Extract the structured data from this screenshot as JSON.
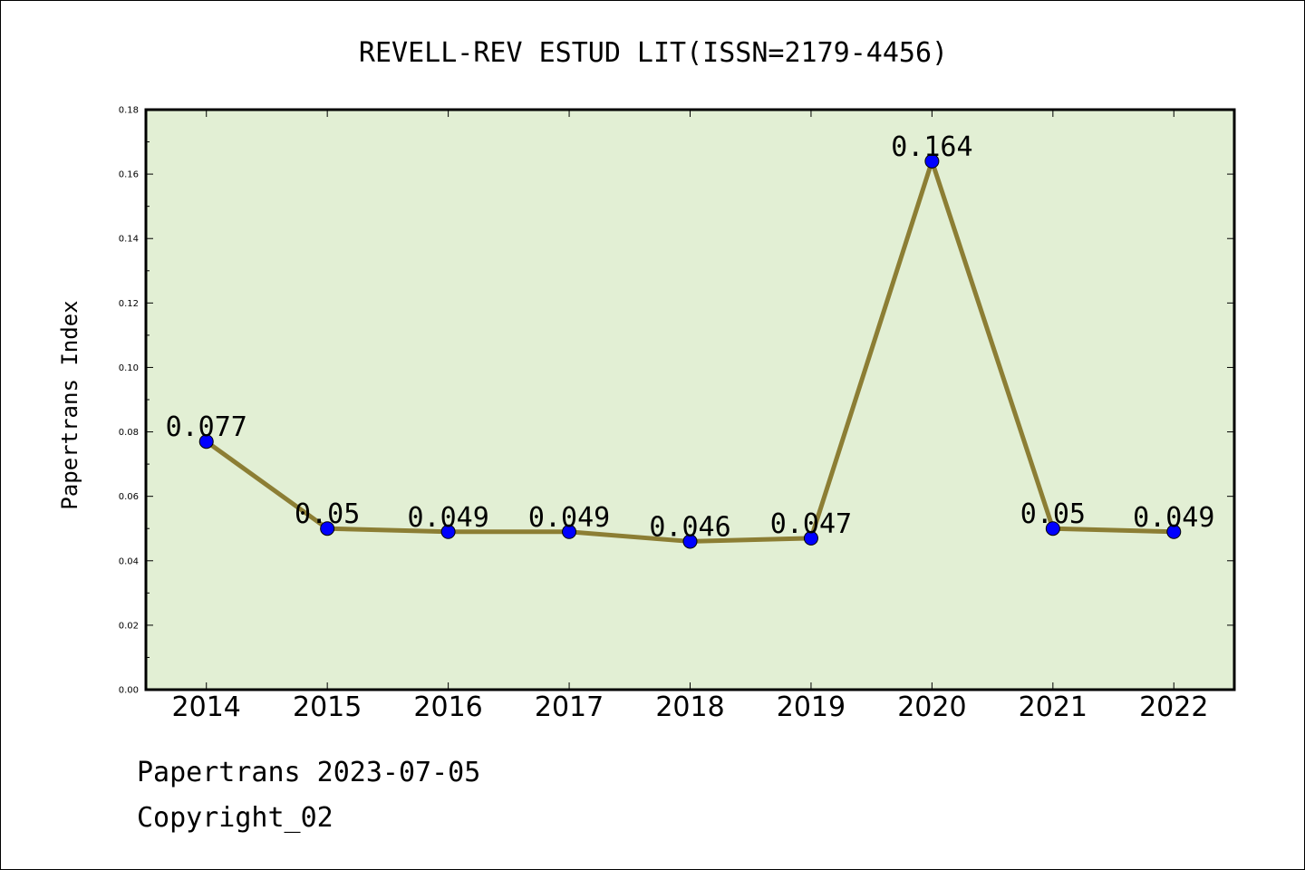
{
  "chart_data": {
    "type": "line",
    "title": "REVELL-REV ESTUD LIT(ISSN=2179-4456)",
    "xlabel": "",
    "ylabel": "Papertrans Index",
    "categories": [
      "2014",
      "2015",
      "2016",
      "2017",
      "2018",
      "2019",
      "2020",
      "2021",
      "2022"
    ],
    "series": [
      {
        "values": [
          0.077,
          0.05,
          0.049,
          0.049,
          0.046,
          0.047,
          0.164,
          0.05,
          0.049
        ],
        "data_labels": [
          "0.077",
          "0.05",
          "0.049",
          "0.049",
          "0.046",
          "0.047",
          "0.164",
          "0.05",
          "0.049"
        ]
      }
    ],
    "ylim": [
      0,
      0.18
    ],
    "yticks": [
      "0.00",
      "0.02",
      "0.04",
      "0.06",
      "0.08",
      "0.10",
      "0.12",
      "0.14",
      "0.16",
      "0.18"
    ],
    "grid": false,
    "legend": "none",
    "colors": {
      "plot_background": "#e2efd4",
      "line": "#8c7e34",
      "marker": "#0000ff"
    }
  },
  "footer": {
    "line1": "Papertrans 2023-07-05",
    "line2": "Copyright_02"
  }
}
